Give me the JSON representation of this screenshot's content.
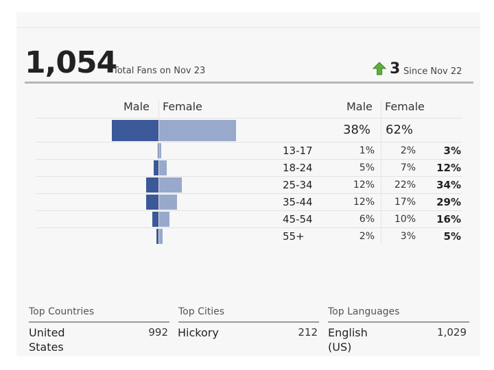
{
  "summary": {
    "total_fans": "1,054",
    "total_label": "Total Fans on Nov 23",
    "change_value": "3",
    "change_label": "Since Nov 22"
  },
  "gender": {
    "male_label": "Male",
    "female_label": "Female",
    "male_pct": "38%",
    "female_pct": "62%",
    "male_value": 38,
    "female_value": 62
  },
  "age_groups": [
    {
      "label": "13-17",
      "male": "1%",
      "female": "2%",
      "total": "3%",
      "male_value": 1,
      "female_value": 2
    },
    {
      "label": "18-24",
      "male": "5%",
      "female": "7%",
      "total": "12%",
      "male_value": 5,
      "female_value": 7
    },
    {
      "label": "25-34",
      "male": "12%",
      "female": "22%",
      "total": "34%",
      "male_value": 12,
      "female_value": 22
    },
    {
      "label": "35-44",
      "male": "12%",
      "female": "17%",
      "total": "29%",
      "male_value": 12,
      "female_value": 17
    },
    {
      "label": "45-54",
      "male": "6%",
      "female": "10%",
      "total": "16%",
      "male_value": 6,
      "female_value": 10
    },
    {
      "label": "55+",
      "male": "2%",
      "female": "3%",
      "total": "5%",
      "male_value": 2,
      "female_value": 3
    }
  ],
  "top_countries": {
    "title": "Top Countries",
    "name": "United States",
    "value": "992"
  },
  "top_cities": {
    "title": "Top Cities",
    "name": "Hickory",
    "value": "212"
  },
  "top_languages": {
    "title": "Top Languages",
    "name": "English (US)",
    "value": "1,029"
  },
  "colors": {
    "male": "#3b5998",
    "female": "#98a9cb",
    "arrow": "#5fae3b"
  }
}
